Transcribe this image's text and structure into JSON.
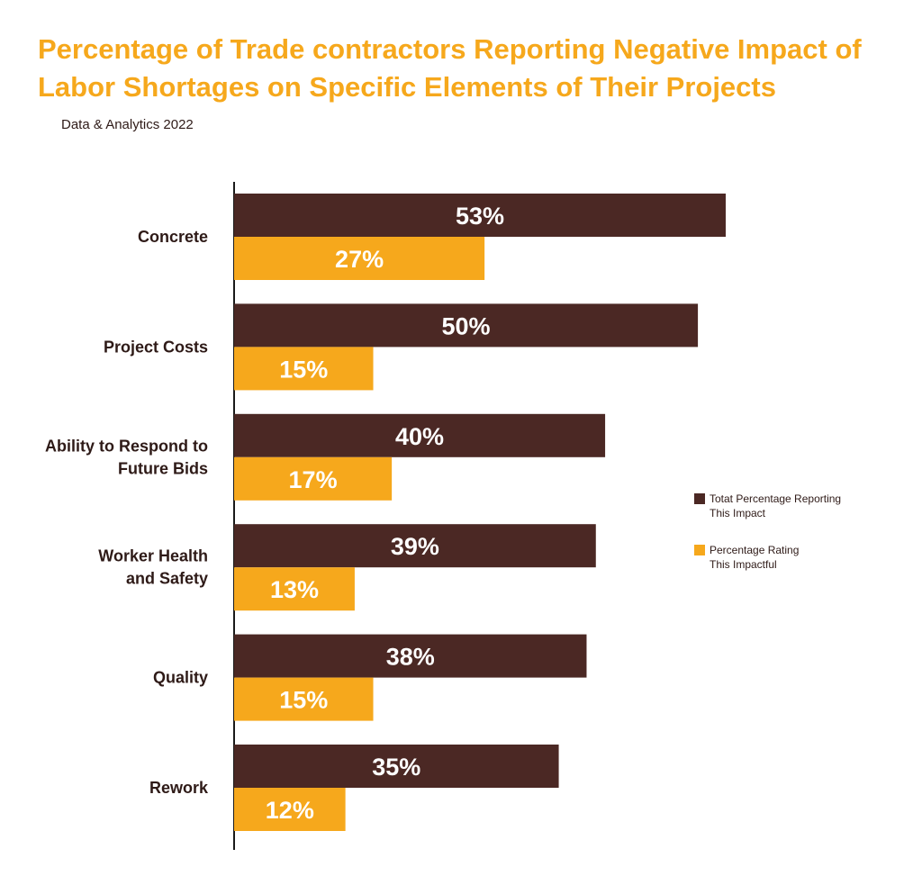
{
  "title": "Percentage of Trade contractors Reporting Negative Impact of Labor Shortages on Specific Elements of Their Projects",
  "source": "Data & Analytics 2022",
  "chart_data": {
    "type": "bar",
    "orientation": "horizontal",
    "title": "Percentage of Trade contractors Reporting Negative Impact of Labor Shortages on Specific Elements of Their Projects",
    "categories": [
      [
        "Concrete"
      ],
      [
        "Project Costs"
      ],
      [
        "Ability to Respond to",
        "Future Bids"
      ],
      [
        "Worker Health",
        "and Safety"
      ],
      [
        "Quality"
      ],
      [
        "Rework"
      ]
    ],
    "series": [
      {
        "name": "Totat Percentage Reporting This Impact",
        "legend_lines": [
          "Totat Percentage Reporting",
          "This Impact"
        ],
        "color": "#4b2824",
        "values": [
          53,
          50,
          40,
          39,
          38,
          35
        ],
        "labels": [
          "53%",
          "50%",
          "40%",
          "39%",
          "38%",
          "35%"
        ]
      },
      {
        "name": "Percentage Rating This Impactful",
        "legend_lines": [
          "Percentage Rating",
          "This Impactful"
        ],
        "color": "#f6a81c",
        "values": [
          27,
          15,
          17,
          13,
          15,
          12
        ],
        "labels": [
          "27%",
          "15%",
          "17%",
          "13%",
          "15%",
          "12%"
        ]
      }
    ],
    "xlim": [
      0,
      53
    ],
    "grid": false,
    "legend_position": "right"
  }
}
